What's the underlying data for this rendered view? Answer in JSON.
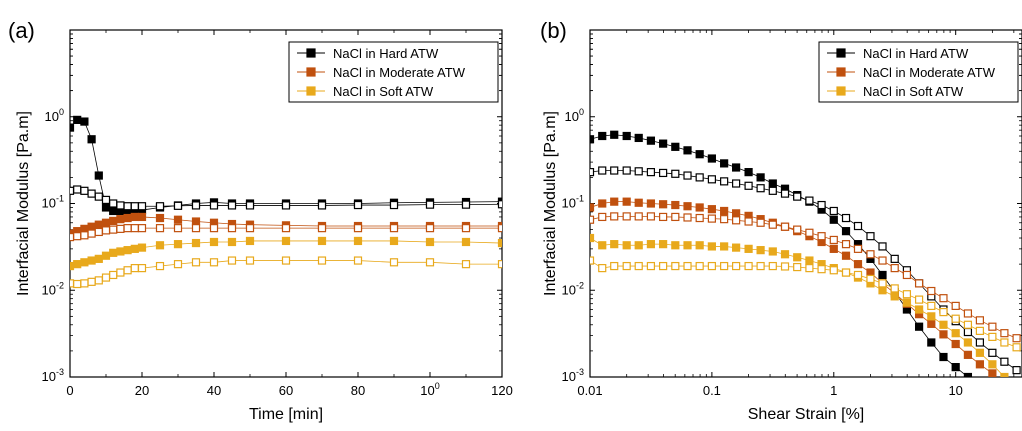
{
  "chart_data": [
    {
      "type": "scatter",
      "panel_label": "(a)",
      "xlabel": "Time [min]",
      "ylabel": "Interfacial Modulus [Pa.m]",
      "xlim": [
        0,
        120
      ],
      "ylim": [
        0.001,
        10
      ],
      "yscale": "log",
      "xticks": [
        "0",
        "20",
        "40",
        "60",
        "80",
        "100",
        "120"
      ],
      "yticks": [
        "10-3",
        "10-2",
        "10-1",
        "100"
      ],
      "legend_position": "top-right",
      "legend": [
        "NaCl in Hard ATW",
        "NaCl in Moderate ATW",
        "NaCl in Soft ATW"
      ],
      "series": [
        {
          "name": "NaCl in Hard ATW",
          "modulus": "storage",
          "marker": "filled-square",
          "color": "#000000",
          "x": [
            0,
            2,
            4,
            6,
            8,
            10,
            12,
            14,
            16,
            18,
            20,
            25,
            30,
            35,
            40,
            45,
            50,
            60,
            70,
            80,
            90,
            100,
            110,
            120
          ],
          "y": [
            0.75,
            0.92,
            0.88,
            0.55,
            0.21,
            0.09,
            0.082,
            0.082,
            0.082,
            0.082,
            0.084,
            0.09,
            0.095,
            0.1,
            0.103,
            0.1,
            0.1,
            0.1,
            0.1,
            0.1,
            0.102,
            0.103,
            0.104,
            0.105
          ]
        },
        {
          "name": "NaCl in Hard ATW",
          "modulus": "loss",
          "marker": "open-square",
          "color": "#000000",
          "x": [
            0,
            2,
            4,
            6,
            8,
            10,
            12,
            14,
            16,
            18,
            20,
            25,
            30,
            35,
            40,
            45,
            50,
            60,
            70,
            80,
            90,
            100,
            110,
            120
          ],
          "y": [
            0.14,
            0.145,
            0.14,
            0.13,
            0.12,
            0.11,
            0.1,
            0.095,
            0.093,
            0.093,
            0.093,
            0.093,
            0.094,
            0.095,
            0.095,
            0.095,
            0.095,
            0.095,
            0.095,
            0.096,
            0.096,
            0.097,
            0.097,
            0.098
          ]
        },
        {
          "name": "NaCl in Moderate ATW",
          "modulus": "storage",
          "marker": "filled-square",
          "color": "#c0500e",
          "x": [
            0,
            2,
            4,
            6,
            8,
            10,
            12,
            14,
            16,
            18,
            20,
            25,
            30,
            35,
            40,
            45,
            50,
            60,
            70,
            80,
            90,
            100,
            110,
            120
          ],
          "y": [
            0.045,
            0.048,
            0.051,
            0.054,
            0.057,
            0.06,
            0.063,
            0.066,
            0.068,
            0.07,
            0.07,
            0.068,
            0.065,
            0.062,
            0.06,
            0.058,
            0.057,
            0.056,
            0.055,
            0.055,
            0.055,
            0.055,
            0.055,
            0.055
          ]
        },
        {
          "name": "NaCl in Moderate ATW",
          "modulus": "loss",
          "marker": "open-square",
          "color": "#c0500e",
          "x": [
            0,
            2,
            4,
            6,
            8,
            10,
            12,
            14,
            16,
            18,
            20,
            25,
            30,
            35,
            40,
            45,
            50,
            60,
            70,
            80,
            90,
            100,
            110,
            120
          ],
          "y": [
            0.041,
            0.042,
            0.043,
            0.045,
            0.047,
            0.049,
            0.05,
            0.051,
            0.052,
            0.052,
            0.052,
            0.052,
            0.052,
            0.052,
            0.052,
            0.052,
            0.052,
            0.052,
            0.052,
            0.052,
            0.052,
            0.052,
            0.052,
            0.052
          ]
        },
        {
          "name": "NaCl in Soft ATW",
          "modulus": "storage",
          "marker": "filled-square",
          "color": "#e8a91c",
          "x": [
            0,
            2,
            4,
            6,
            8,
            10,
            12,
            14,
            16,
            18,
            20,
            25,
            30,
            35,
            40,
            45,
            50,
            60,
            70,
            80,
            90,
            100,
            110,
            120
          ],
          "y": [
            0.019,
            0.02,
            0.021,
            0.022,
            0.023,
            0.025,
            0.027,
            0.028,
            0.029,
            0.03,
            0.031,
            0.033,
            0.034,
            0.035,
            0.036,
            0.036,
            0.037,
            0.037,
            0.037,
            0.037,
            0.037,
            0.036,
            0.036,
            0.035
          ]
        },
        {
          "name": "NaCl in Soft ATW",
          "modulus": "loss",
          "marker": "open-square",
          "color": "#e8a91c",
          "x": [
            0,
            2,
            4,
            6,
            8,
            10,
            12,
            14,
            16,
            18,
            20,
            25,
            30,
            35,
            40,
            45,
            50,
            60,
            70,
            80,
            90,
            100,
            110,
            120
          ],
          "y": [
            0.012,
            0.0118,
            0.012,
            0.0125,
            0.013,
            0.014,
            0.015,
            0.016,
            0.017,
            0.018,
            0.018,
            0.019,
            0.02,
            0.021,
            0.021,
            0.022,
            0.022,
            0.022,
            0.022,
            0.022,
            0.021,
            0.021,
            0.02,
            0.02
          ]
        }
      ]
    },
    {
      "type": "scatter",
      "panel_label": "(b)",
      "xlabel": "Shear Strain [%]",
      "ylabel": "Interfacial Modulus [Pa.m]",
      "xlim": [
        0.01,
        35
      ],
      "xscale": "log",
      "ylim": [
        0.001,
        10
      ],
      "yscale": "log",
      "xticks": [
        "0.01",
        "0.1",
        "1",
        "10"
      ],
      "yticks": [
        "10-3",
        "10-2",
        "10-1",
        "100"
      ],
      "legend_position": "top-right",
      "legend": [
        "NaCl in Hard ATW",
        "NaCl in Moderate ATW",
        "NaCl in Soft ATW"
      ],
      "series": [
        {
          "name": "NaCl in Hard ATW",
          "modulus": "storage",
          "marker": "filled-square",
          "color": "#000000",
          "x": [
            0.01,
            0.0126,
            0.0158,
            0.02,
            0.0251,
            0.0316,
            0.0398,
            0.0501,
            0.0631,
            0.0794,
            0.1,
            0.126,
            0.158,
            0.2,
            0.251,
            0.316,
            0.398,
            0.501,
            0.631,
            0.794,
            1,
            1.26,
            1.58,
            2,
            2.51,
            3.16,
            3.98,
            5.01,
            6.31,
            7.94,
            10,
            12.6
          ],
          "y": [
            0.55,
            0.6,
            0.62,
            0.6,
            0.57,
            0.53,
            0.49,
            0.45,
            0.41,
            0.37,
            0.33,
            0.29,
            0.26,
            0.23,
            0.2,
            0.17,
            0.148,
            0.125,
            0.105,
            0.085,
            0.065,
            0.048,
            0.034,
            0.023,
            0.015,
            0.0095,
            0.006,
            0.0038,
            0.0025,
            0.0017,
            0.0013,
            0.001
          ]
        },
        {
          "name": "NaCl in Hard ATW",
          "modulus": "loss",
          "marker": "open-square",
          "color": "#000000",
          "x": [
            0.01,
            0.0126,
            0.0158,
            0.02,
            0.0251,
            0.0316,
            0.0398,
            0.0501,
            0.0631,
            0.0794,
            0.1,
            0.126,
            0.158,
            0.2,
            0.251,
            0.316,
            0.398,
            0.501,
            0.631,
            0.794,
            1,
            1.26,
            1.58,
            2,
            2.51,
            3.16,
            3.98,
            5.01,
            6.31,
            7.94,
            10,
            12.6,
            15.8,
            20,
            25.1,
            31.6
          ],
          "y": [
            0.23,
            0.24,
            0.24,
            0.24,
            0.235,
            0.23,
            0.225,
            0.22,
            0.21,
            0.2,
            0.19,
            0.18,
            0.17,
            0.16,
            0.15,
            0.14,
            0.13,
            0.12,
            0.108,
            0.096,
            0.082,
            0.068,
            0.055,
            0.042,
            0.032,
            0.023,
            0.017,
            0.012,
            0.0085,
            0.006,
            0.0044,
            0.0033,
            0.0025,
            0.0019,
            0.0015,
            0.0012
          ]
        },
        {
          "name": "NaCl in Moderate ATW",
          "modulus": "storage",
          "marker": "filled-square",
          "color": "#c0500e",
          "x": [
            0.01,
            0.0126,
            0.0158,
            0.02,
            0.0251,
            0.0316,
            0.0398,
            0.0501,
            0.0631,
            0.0794,
            0.1,
            0.126,
            0.158,
            0.2,
            0.251,
            0.316,
            0.398,
            0.501,
            0.631,
            0.794,
            1,
            1.26,
            1.58,
            2,
            2.51,
            3.16,
            3.98,
            5.01,
            6.31,
            7.94,
            10,
            12.6,
            15.8,
            20
          ],
          "y": [
            0.09,
            0.1,
            0.105,
            0.105,
            0.102,
            0.1,
            0.098,
            0.096,
            0.093,
            0.09,
            0.086,
            0.082,
            0.077,
            0.072,
            0.066,
            0.06,
            0.054,
            0.048,
            0.042,
            0.036,
            0.03,
            0.025,
            0.02,
            0.016,
            0.012,
            0.0092,
            0.007,
            0.0053,
            0.0041,
            0.0031,
            0.0024,
            0.0018,
            0.0014,
            0.0011
          ]
        },
        {
          "name": "NaCl in Moderate ATW",
          "modulus": "loss",
          "marker": "open-square",
          "color": "#c0500e",
          "x": [
            0.01,
            0.0126,
            0.0158,
            0.02,
            0.0251,
            0.0316,
            0.0398,
            0.0501,
            0.0631,
            0.0794,
            0.1,
            0.126,
            0.158,
            0.2,
            0.251,
            0.316,
            0.398,
            0.501,
            0.631,
            0.794,
            1,
            1.26,
            1.58,
            2,
            2.51,
            3.16,
            3.98,
            5.01,
            6.31,
            7.94,
            10,
            12.6,
            15.8,
            20,
            25.1,
            31.6
          ],
          "y": [
            0.065,
            0.07,
            0.071,
            0.071,
            0.071,
            0.071,
            0.07,
            0.07,
            0.069,
            0.068,
            0.067,
            0.066,
            0.064,
            0.062,
            0.06,
            0.057,
            0.054,
            0.05,
            0.046,
            0.042,
            0.038,
            0.034,
            0.03,
            0.026,
            0.022,
            0.018,
            0.015,
            0.012,
            0.0098,
            0.0081,
            0.0066,
            0.0054,
            0.0045,
            0.0038,
            0.0032,
            0.0028
          ]
        },
        {
          "name": "NaCl in Soft ATW",
          "modulus": "storage",
          "marker": "filled-square",
          "color": "#e8a91c",
          "x": [
            0.01,
            0.0126,
            0.0158,
            0.02,
            0.0251,
            0.0316,
            0.0398,
            0.0501,
            0.0631,
            0.0794,
            0.1,
            0.126,
            0.158,
            0.2,
            0.251,
            0.316,
            0.398,
            0.501,
            0.631,
            0.794,
            1,
            1.26,
            1.58,
            2,
            2.51,
            3.16,
            3.98,
            5.01,
            6.31,
            7.94,
            10,
            12.6,
            15.8,
            20,
            25.1
          ],
          "y": [
            0.04,
            0.033,
            0.034,
            0.033,
            0.033,
            0.034,
            0.034,
            0.033,
            0.033,
            0.033,
            0.032,
            0.032,
            0.031,
            0.03,
            0.029,
            0.028,
            0.026,
            0.024,
            0.022,
            0.02,
            0.018,
            0.016,
            0.014,
            0.012,
            0.01,
            0.0085,
            0.0072,
            0.006,
            0.005,
            0.004,
            0.0032,
            0.0025,
            0.0019,
            0.0014,
            0.001
          ]
        },
        {
          "name": "NaCl in Soft ATW",
          "modulus": "loss",
          "marker": "open-square",
          "color": "#e8a91c",
          "x": [
            0.01,
            0.0126,
            0.0158,
            0.02,
            0.0251,
            0.0316,
            0.0398,
            0.0501,
            0.0631,
            0.0794,
            0.1,
            0.126,
            0.158,
            0.2,
            0.251,
            0.316,
            0.398,
            0.501,
            0.631,
            0.794,
            1,
            1.26,
            1.58,
            2,
            2.51,
            3.16,
            3.98,
            5.01,
            6.31,
            7.94,
            10,
            12.6,
            15.8,
            20,
            25.1,
            31.6
          ],
          "y": [
            0.022,
            0.018,
            0.019,
            0.019,
            0.019,
            0.019,
            0.019,
            0.019,
            0.019,
            0.019,
            0.019,
            0.019,
            0.019,
            0.019,
            0.019,
            0.019,
            0.0188,
            0.0185,
            0.018,
            0.0175,
            0.017,
            0.016,
            0.015,
            0.0135,
            0.012,
            0.0105,
            0.009,
            0.0078,
            0.0066,
            0.0056,
            0.0047,
            0.004,
            0.0034,
            0.0029,
            0.0025,
            0.0022
          ]
        }
      ]
    }
  ]
}
